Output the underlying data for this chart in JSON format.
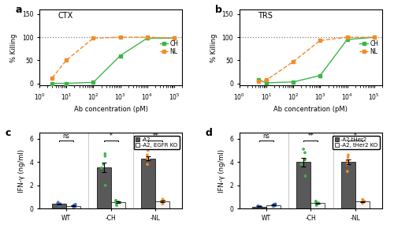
{
  "panel_a_title": "CTX",
  "panel_b_title": "TRS",
  "x_label_ab": "Ab concentration (pM)",
  "y_label_ab": "% Killing",
  "ctxCH_x": [
    3,
    10,
    100,
    1000,
    10000,
    100000
  ],
  "ctxCH_y": [
    0,
    0,
    2,
    60,
    98,
    98
  ],
  "ctxNL_x": [
    3,
    10,
    100,
    1000,
    10000,
    100000
  ],
  "ctxNL_y": [
    12,
    50,
    98,
    100,
    100,
    98
  ],
  "trsCH_x": [
    5,
    10,
    100,
    1000,
    10000,
    100000
  ],
  "trsCH_y": [
    8,
    1,
    3,
    17,
    95,
    100
  ],
  "trsNL_x": [
    5,
    10,
    100,
    1000,
    10000,
    100000
  ],
  "trsNL_y": [
    5,
    7,
    47,
    93,
    100,
    100
  ],
  "color_CH": "#3cb54a",
  "color_NL": "#f28c28",
  "color_dark": "#595959",
  "color_light": "#f2f2f2",
  "color_WT_dot": "#4472c4",
  "color_CH_dot": "#3cb54a",
  "color_NL_dot": "#f28c28",
  "y_label_cd": "IFN-γ (ng/ml)",
  "groups_cd": [
    "WT",
    "-CH",
    "-NL"
  ],
  "c_dark_means": [
    0.42,
    3.55,
    4.3
  ],
  "c_light_means": [
    0.25,
    0.55,
    0.65
  ],
  "c_dark_dots": [
    [
      0.25,
      0.35,
      0.42,
      0.5,
      0.55
    ],
    [
      2.0,
      3.5,
      4.5,
      4.7,
      3.8
    ],
    [
      3.8,
      4.3,
      4.6,
      5.0,
      4.2
    ]
  ],
  "c_light_dots": [
    [
      0.12,
      0.2,
      0.27,
      0.32,
      0.38
    ],
    [
      0.3,
      0.48,
      0.58,
      0.65,
      0.72
    ],
    [
      0.42,
      0.58,
      0.65,
      0.75,
      0.82
    ]
  ],
  "d_dark_means": [
    0.18,
    4.0,
    4.0
  ],
  "d_light_means": [
    0.32,
    0.48,
    0.62
  ],
  "d_dark_dots": [
    [
      0.1,
      0.15,
      0.2,
      0.22,
      0.25
    ],
    [
      2.8,
      3.8,
      4.2,
      4.8,
      5.1
    ],
    [
      3.2,
      3.8,
      4.1,
      4.4,
      4.6
    ]
  ],
  "d_light_dots": [
    [
      0.2,
      0.28,
      0.35,
      0.38,
      0.42
    ],
    [
      0.3,
      0.42,
      0.5,
      0.58,
      0.65
    ],
    [
      0.48,
      0.58,
      0.65,
      0.72,
      0.8
    ]
  ],
  "c_legend1": "-A2",
  "c_legend2": "-A2, EGFR KO",
  "d_legend1": "-A2 tHer2",
  "d_legend2": "-A2, tHer2 KO",
  "sig_c": [
    "ns",
    "*",
    "**"
  ],
  "sig_d": [
    "ns",
    "**",
    "*"
  ],
  "ylim_ab": [
    -5,
    160
  ],
  "ylim_cd": [
    0,
    6.5
  ],
  "yticks_ab": [
    0,
    50,
    100,
    150
  ],
  "yticks_cd": [
    0,
    2,
    4,
    6
  ],
  "xlog_min": 1,
  "xlog_max": 200000
}
